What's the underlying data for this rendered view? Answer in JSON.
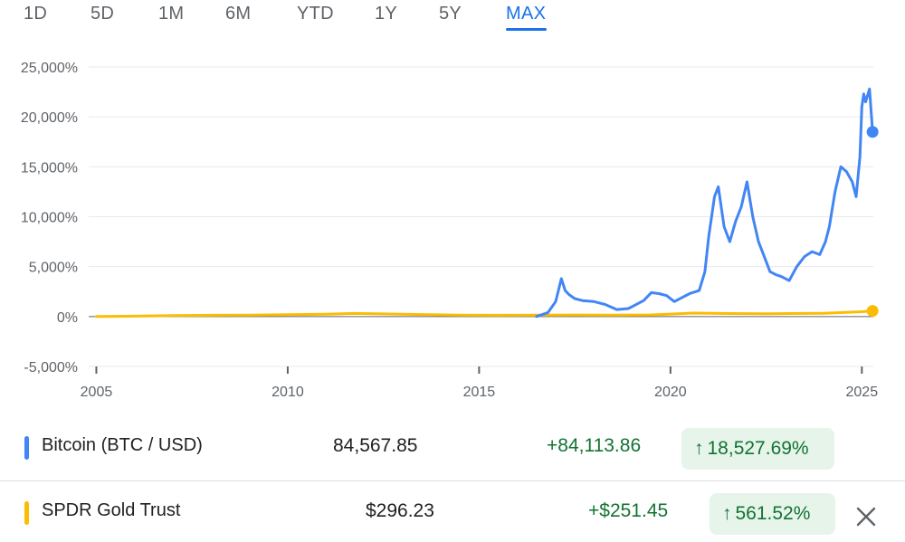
{
  "range_tabs": {
    "items": [
      "1D",
      "5D",
      "1M",
      "6M",
      "YTD",
      "1Y",
      "5Y",
      "MAX"
    ],
    "selected": "MAX"
  },
  "colors": {
    "bitcoin": "#4285f4",
    "gold": "#fbbc04",
    "accent": "#1a73e8",
    "positive": "#137333",
    "positive_bg": "#e6f4ea",
    "grid": "#e8eaed",
    "axis_text": "#5f6368"
  },
  "chart_data": {
    "type": "line",
    "title": "",
    "xlabel": "",
    "ylabel": "",
    "y_unit": "%",
    "xlim": [
      2004.8,
      2025.3
    ],
    "ylim": [
      -5000,
      25000
    ],
    "y_ticks": [
      -5000,
      0,
      5000,
      10000,
      15000,
      20000,
      25000
    ],
    "y_tick_labels": [
      "-5,000%",
      "0%",
      "5,000%",
      "10,000%",
      "15,000%",
      "20,000%",
      "25,000%"
    ],
    "x_ticks": [
      2005,
      2010,
      2015,
      2020,
      2025
    ],
    "x_tick_labels": [
      "2005",
      "2010",
      "2015",
      "2020",
      "2025"
    ],
    "grid": true,
    "series": [
      {
        "name": "Bitcoin (BTC / USD)",
        "color": "#4285f4",
        "x": [
          2016.5,
          2016.8,
          2017.0,
          2017.15,
          2017.25,
          2017.35,
          2017.5,
          2017.7,
          2018.0,
          2018.3,
          2018.6,
          2018.9,
          2019.0,
          2019.3,
          2019.5,
          2019.7,
          2019.9,
          2020.1,
          2020.3,
          2020.5,
          2020.75,
          2020.9,
          2021.0,
          2021.15,
          2021.25,
          2021.4,
          2021.55,
          2021.7,
          2021.85,
          2022.0,
          2022.15,
          2022.3,
          2022.45,
          2022.6,
          2022.75,
          2022.9,
          2023.1,
          2023.3,
          2023.5,
          2023.7,
          2023.9,
          2024.05,
          2024.15,
          2024.3,
          2024.45,
          2024.6,
          2024.75,
          2024.85,
          2024.95,
          2025.0,
          2025.05,
          2025.1,
          2025.2,
          2025.28
        ],
        "y": [
          0,
          400,
          1500,
          3800,
          2600,
          2200,
          1800,
          1600,
          1500,
          1200,
          700,
          800,
          1000,
          1600,
          2400,
          2300,
          2100,
          1500,
          1900,
          2300,
          2600,
          4500,
          8000,
          12000,
          13000,
          9000,
          7500,
          9500,
          11000,
          13500,
          10000,
          7500,
          6000,
          4500,
          4200,
          4000,
          3600,
          5000,
          6000,
          6500,
          6200,
          7500,
          9000,
          12500,
          15000,
          14500,
          13500,
          12000,
          16000,
          21000,
          22300,
          21500,
          22800,
          18500
        ]
      },
      {
        "name": "SPDR Gold Trust",
        "color": "#fbbc04",
        "x": [
          2005.0,
          2006.0,
          2007.0,
          2008.0,
          2009.0,
          2010.0,
          2011.0,
          2011.7,
          2012.5,
          2013.5,
          2014.5,
          2015.5,
          2016.5,
          2017.5,
          2018.5,
          2019.5,
          2020.0,
          2020.6,
          2021.5,
          2022.5,
          2023.5,
          2024.0,
          2024.5,
          2025.0,
          2025.28
        ],
        "y": [
          0,
          40,
          90,
          130,
          150,
          180,
          240,
          310,
          270,
          200,
          140,
          130,
          150,
          160,
          150,
          170,
          250,
          350,
          300,
          280,
          310,
          330,
          400,
          480,
          561.52
        ]
      }
    ],
    "legend": "none"
  },
  "rows": [
    {
      "name": "Bitcoin (BTC / USD)",
      "price": "84,567.85",
      "change": "+84,113.86",
      "pct_arrow": "↑",
      "pct": "18,527.69%",
      "color": "#4285f4"
    },
    {
      "name": "SPDR Gold Trust",
      "price": "$296.23",
      "change": "+$251.45",
      "pct_arrow": "↑",
      "pct": "561.52%",
      "color": "#fbbc04"
    }
  ],
  "close_icon": "close-icon"
}
